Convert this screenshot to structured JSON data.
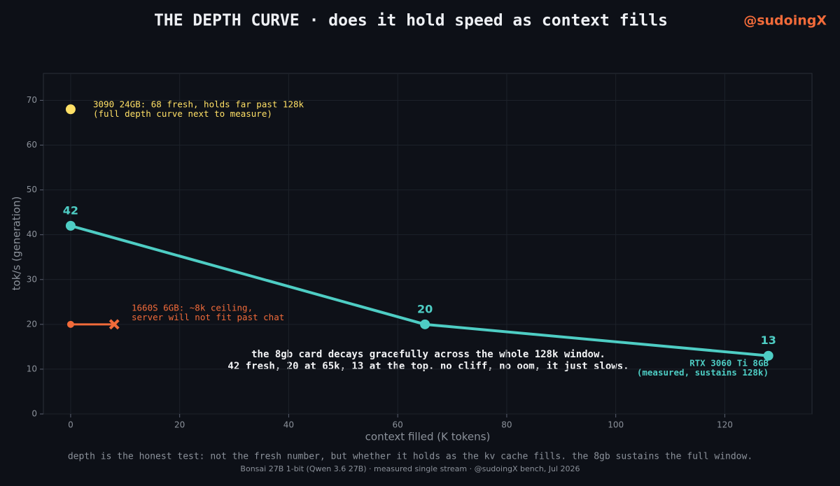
{
  "chart_data": {
    "type": "line",
    "title": "THE DEPTH CURVE  ·  does it hold speed as context fills",
    "handle": "@sudoingX",
    "xlabel": "context filled (K tokens)",
    "ylabel": "tok/s (generation)",
    "xlim": [
      -5,
      136
    ],
    "xticks": [
      0,
      20,
      40,
      60,
      80,
      100,
      120
    ],
    "ylim": [
      0,
      76
    ],
    "yticks": [
      0,
      10,
      20,
      30,
      40,
      50,
      60,
      70
    ],
    "grid": true,
    "series": [
      {
        "name": "RTX 3060 Ti 8GB",
        "note_lines": [
          "(measured, sustains 128k)"
        ],
        "color": "#4ecdc4",
        "x": [
          0,
          65,
          128
        ],
        "values": [
          42,
          20,
          13
        ],
        "data_labels": true
      },
      {
        "color": "#f26b3a",
        "x": [
          0,
          8
        ],
        "values": [
          20,
          20
        ],
        "end_marker": "x",
        "note_lines": [
          "1660S 6GB: ~8k ceiling,",
          "server will not fit past chat"
        ]
      },
      {
        "color": "#ffe066",
        "x": [
          0
        ],
        "values": [
          68
        ],
        "note_lines": [
          "3090 24GB: 68 fresh, holds far past 128k",
          "(full depth curve next to measure)"
        ]
      }
    ],
    "annotation_lines": [
      "the 8gb card decays gracefully across the whole 128k window.",
      "42 fresh, 20 at 65k, 13 at the top. no cliff, no oom, it just slows."
    ],
    "footer_lines": [
      "depth is the honest test: not the fresh number, but whether it holds as the kv cache fills. the 8gb sustains the full window.",
      "Bonsai 27B 1-bit (Qwen 3.6 27B)  ·  measured single stream  ·  @sudoingX bench, Jul 2026"
    ]
  }
}
